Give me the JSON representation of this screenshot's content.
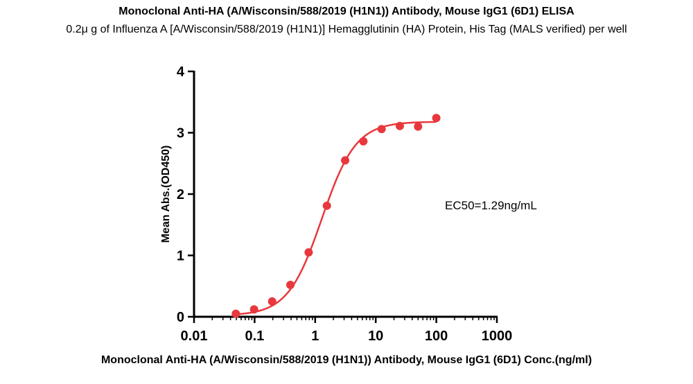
{
  "chart_data": {
    "type": "scatter",
    "title": "Monoclonal Anti-HA (A/Wisconsin/588/2019 (H1N1)) Antibody, Mouse IgG1 (6D1) ELISA",
    "subtitle": "0.2μ g of Influenza A [A/Wisconsin/588/2019 (H1N1)] Hemagglutinin (HA) Protein, His Tag (MALS verified) per well",
    "xlabel": "Monoclonal Anti-HA (A/Wisconsin/588/2019 (H1N1)) Antibody, Mouse IgG1 (6D1) Conc.(ng/ml)",
    "ylabel": "Mean Abs.(OD450)",
    "xscale": "log",
    "xlim": [
      0.01,
      1000
    ],
    "ylim": [
      0,
      4
    ],
    "x_ticks": [
      "0.01",
      "0.1",
      "1",
      "10",
      "100",
      "1000"
    ],
    "y_ticks": [
      "0",
      "1",
      "2",
      "3",
      "4"
    ],
    "grid": false,
    "color": "#e8383d",
    "annotation": "EC50=1.29ng/mL",
    "series": [
      {
        "x": [
          0.049,
          0.098,
          0.195,
          0.39,
          0.78,
          1.56,
          3.125,
          6.25,
          12.5,
          25,
          50,
          100
        ],
        "y": [
          0.05,
          0.12,
          0.25,
          0.52,
          1.05,
          1.81,
          2.55,
          2.86,
          3.06,
          3.11,
          3.1,
          3.24
        ]
      }
    ],
    "fit": {
      "bottom": 0.02,
      "top": 3.18,
      "ec50": 1.29,
      "hill": 1.55,
      "x_range": [
        0.049,
        100
      ]
    }
  }
}
